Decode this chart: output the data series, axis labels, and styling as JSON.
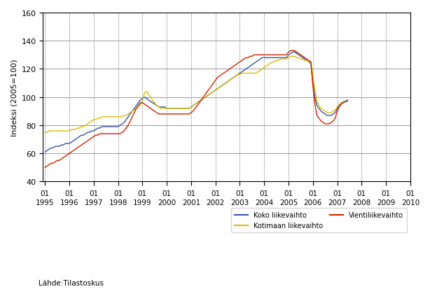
{
  "ylabel": "Indeksi (2005=100)",
  "source_text": "Lähde:Tilastoskus",
  "ylim": [
    40,
    160
  ],
  "yticks": [
    40,
    60,
    80,
    100,
    120,
    140,
    160
  ],
  "legend_labels": [
    "Koko liikevaihto",
    "Kotimaan liikevaihto",
    "Vientiliikevaihto"
  ],
  "line_colors": [
    "#3355aa",
    "#ddbb00",
    "#cc2200"
  ],
  "x_year_labels": [
    "1995",
    "1996",
    "1997",
    "1998",
    "1999",
    "2000",
    "2001",
    "2002",
    "2003",
    "2004",
    "2005",
    "2006",
    "2007",
    "2008",
    "2009",
    "2010"
  ],
  "koko": [
    61,
    62,
    63,
    64,
    64,
    65,
    65,
    65,
    66,
    66,
    67,
    67,
    67,
    68,
    69,
    70,
    71,
    72,
    73,
    73,
    74,
    75,
    75,
    76,
    76,
    77,
    78,
    78,
    79,
    79,
    79,
    79,
    79,
    79,
    79,
    79,
    79,
    80,
    81,
    82,
    84,
    86,
    88,
    90,
    92,
    94,
    96,
    98,
    99,
    100,
    99,
    98,
    97,
    96,
    95,
    94,
    93,
    93,
    93,
    93,
    92,
    92,
    92,
    92,
    92,
    92,
    92,
    92,
    92,
    92,
    92,
    92,
    93,
    94,
    95,
    96,
    97,
    98,
    99,
    100,
    101,
    102,
    103,
    104,
    105,
    106,
    107,
    108,
    109,
    110,
    111,
    112,
    113,
    114,
    115,
    116,
    117,
    118,
    119,
    120,
    121,
    122,
    123,
    124,
    125,
    126,
    127,
    128,
    128,
    128,
    128,
    128,
    128,
    128,
    128,
    128,
    128,
    128,
    128,
    128,
    130,
    131,
    132,
    132,
    131,
    130,
    129,
    128,
    127,
    126,
    125,
    124,
    110,
    100,
    94,
    92,
    90,
    89,
    88,
    87,
    87,
    87,
    88,
    89,
    92,
    94,
    95,
    96,
    97,
    98
  ],
  "kotimaan": [
    75,
    75,
    76,
    76,
    76,
    76,
    76,
    76,
    76,
    76,
    76,
    76,
    76,
    77,
    77,
    77,
    78,
    78,
    79,
    79,
    80,
    81,
    82,
    83,
    84,
    84,
    85,
    85,
    86,
    86,
    86,
    86,
    86,
    86,
    86,
    86,
    86,
    86,
    86,
    87,
    87,
    88,
    89,
    90,
    91,
    92,
    93,
    95,
    97,
    103,
    104,
    102,
    100,
    98,
    96,
    94,
    93,
    92,
    92,
    92,
    92,
    92,
    92,
    92,
    92,
    92,
    92,
    92,
    92,
    92,
    92,
    92,
    93,
    94,
    95,
    96,
    97,
    98,
    99,
    100,
    101,
    102,
    103,
    104,
    105,
    106,
    107,
    108,
    109,
    110,
    111,
    112,
    113,
    114,
    115,
    116,
    116,
    117,
    117,
    117,
    117,
    117,
    117,
    117,
    117,
    118,
    119,
    120,
    121,
    122,
    123,
    124,
    125,
    125,
    126,
    126,
    127,
    127,
    127,
    127,
    128,
    129,
    129,
    129,
    128,
    128,
    127,
    127,
    126,
    126,
    125,
    125,
    115,
    105,
    97,
    94,
    92,
    91,
    90,
    89,
    89,
    89,
    90,
    91,
    93,
    95,
    96,
    97,
    97,
    97
  ],
  "vienti": [
    50,
    51,
    52,
    53,
    53,
    54,
    55,
    55,
    56,
    57,
    58,
    59,
    60,
    61,
    62,
    63,
    64,
    65,
    66,
    67,
    68,
    69,
    70,
    71,
    72,
    73,
    73,
    74,
    74,
    74,
    74,
    74,
    74,
    74,
    74,
    74,
    74,
    74,
    75,
    76,
    78,
    80,
    83,
    86,
    89,
    92,
    94,
    96,
    96,
    95,
    94,
    93,
    92,
    91,
    90,
    89,
    88,
    88,
    88,
    88,
    88,
    88,
    88,
    88,
    88,
    88,
    88,
    88,
    88,
    88,
    88,
    88,
    89,
    90,
    92,
    94,
    96,
    98,
    100,
    102,
    104,
    106,
    108,
    110,
    112,
    114,
    115,
    116,
    117,
    118,
    119,
    120,
    121,
    122,
    123,
    124,
    125,
    126,
    127,
    128,
    128,
    129,
    129,
    130,
    130,
    130,
    130,
    130,
    130,
    130,
    130,
    130,
    130,
    130,
    130,
    130,
    130,
    130,
    130,
    130,
    132,
    133,
    133,
    133,
    132,
    131,
    130,
    129,
    128,
    127,
    126,
    125,
    108,
    95,
    87,
    85,
    83,
    82,
    81,
    81,
    81,
    82,
    83,
    85,
    90,
    93,
    95,
    96,
    97,
    97
  ]
}
